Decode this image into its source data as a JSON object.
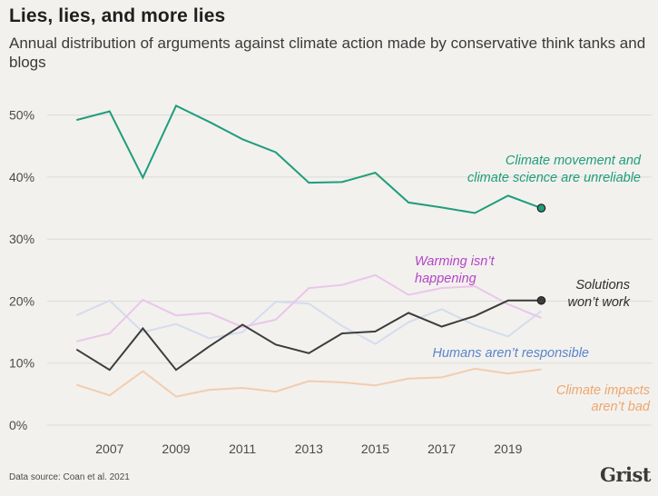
{
  "header": {
    "title": "Lies, lies, and more lies",
    "subtitle": "Annual distribution of arguments against climate action made by conservative think tanks and blogs"
  },
  "footer": {
    "source": "Data source: Coan et al. 2021",
    "logo": "Grist"
  },
  "colors": {
    "background": "#f2f1ee",
    "grid": "#dddbd6",
    "axis_text": "#4a4a4a"
  },
  "chart_data": {
    "type": "line",
    "x": [
      2006,
      2007,
      2008,
      2009,
      2010,
      2011,
      2012,
      2013,
      2014,
      2015,
      2016,
      2017,
      2018,
      2019,
      2020
    ],
    "xticks": [
      "2007",
      "2009",
      "2011",
      "2013",
      "2015",
      "2017",
      "2019"
    ],
    "xtick_values": [
      2007,
      2009,
      2011,
      2013,
      2015,
      2017,
      2019
    ],
    "xlim": [
      2005.2,
      2021
    ],
    "ylim": [
      0,
      52
    ],
    "yticks": [
      "0%",
      "10%",
      "20%",
      "30%",
      "40%",
      "50%"
    ],
    "ytick_values": [
      0,
      10,
      20,
      30,
      40,
      50
    ],
    "grid": true,
    "xlabel": "",
    "ylabel": "",
    "series": [
      {
        "name": "Climate impacts aren't bad",
        "label_lines": [
          "Climate impacts",
          "aren’t bad"
        ],
        "color": "#f3ccb0",
        "label_color": "#f0a66e",
        "width": 2,
        "values": [
          6.5,
          4.8,
          8.7,
          4.6,
          5.7,
          6.0,
          5.4,
          7.1,
          6.9,
          6.4,
          7.5,
          7.7,
          9.1,
          8.3,
          9.0
        ]
      },
      {
        "name": "Humans aren't responsible",
        "label_lines": [
          "Humans aren’t responsible"
        ],
        "color": "#d5dced",
        "label_color": "#5b84cc",
        "width": 2,
        "values": [
          17.7,
          20.1,
          15.0,
          16.3,
          14.0,
          15.0,
          19.9,
          19.6,
          16.0,
          13.1,
          16.6,
          18.7,
          16.1,
          14.3,
          18.4
        ]
      },
      {
        "name": "Warming isn't happening",
        "label_lines": [
          "Warming isn’t",
          "happening"
        ],
        "color": "#ebc6ea",
        "label_color": "#b545c9",
        "width": 2,
        "values": [
          13.5,
          14.8,
          20.2,
          17.7,
          18.1,
          15.8,
          17.0,
          22.1,
          22.6,
          24.2,
          21.0,
          22.1,
          22.4,
          19.5,
          17.3
        ]
      },
      {
        "name": "Solutions won't work",
        "label_lines": [
          "Solutions",
          "won’t work"
        ],
        "color": "#3d3d3d",
        "label_color": "#2e2e2e",
        "width": 2,
        "endpoint": true,
        "values": [
          12.2,
          8.9,
          15.6,
          8.9,
          12.7,
          16.2,
          13.0,
          11.6,
          14.8,
          15.1,
          18.1,
          15.9,
          17.6,
          20.1,
          20.1
        ]
      },
      {
        "name": "Climate movement and climate science are unreliable",
        "label_lines": [
          "Climate movement and",
          "climate science are unreliable"
        ],
        "color": "#1f9d7c",
        "label_color": "#1f9d7c",
        "width": 2,
        "endpoint": true,
        "values": [
          49.2,
          50.6,
          39.9,
          51.5,
          48.9,
          46.1,
          44.0,
          39.1,
          39.2,
          40.7,
          35.9,
          35.1,
          34.2,
          37.0,
          35.0
        ]
      }
    ]
  }
}
